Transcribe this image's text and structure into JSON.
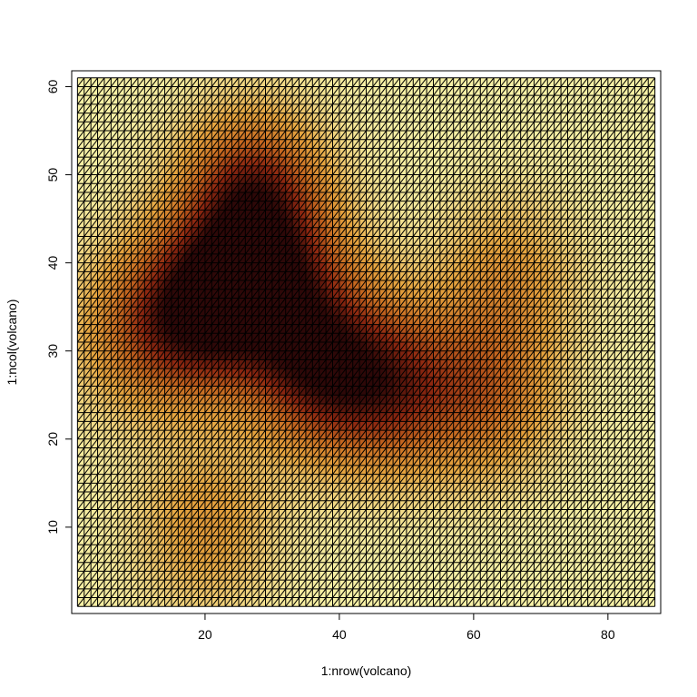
{
  "chart_data": {
    "type": "heatmap",
    "title": "",
    "xlabel": "1:nrow(volcano)",
    "ylabel": "1:ncol(volcano)",
    "x_range": [
      1,
      87
    ],
    "y_range": [
      1,
      61
    ],
    "xlim": [
      0.14,
      87.86
    ],
    "ylim": [
      0.2,
      61.8
    ],
    "x_ticks": [
      20,
      40,
      60,
      80
    ],
    "y_ticks": [
      10,
      20,
      30,
      40,
      50,
      60
    ],
    "mesh": "triangulated grid, black outlines on every cell",
    "grid": false,
    "legend": "none",
    "palette": {
      "low": "#f7f1a6",
      "mid_low": "#e7a640",
      "mid": "#c86a20",
      "mid_high": "#8e2710",
      "high": "#2e0808"
    },
    "height_peaks": [
      {
        "x": 20,
        "y": 35,
        "level": 1.0
      },
      {
        "x": 27,
        "y": 47,
        "level": 0.85
      },
      {
        "x": 37,
        "y": 28,
        "level": 0.75
      },
      {
        "x": 48,
        "y": 26,
        "level": 0.65
      },
      {
        "x": 32,
        "y": 37,
        "level": 0.6
      },
      {
        "x": 62,
        "y": 25,
        "level": 0.45
      },
      {
        "x": 65,
        "y": 38,
        "level": 0.3
      },
      {
        "x": 10,
        "y": 32,
        "level": 0.35
      },
      {
        "x": 20,
        "y": 10,
        "level": 0.3
      }
    ]
  }
}
